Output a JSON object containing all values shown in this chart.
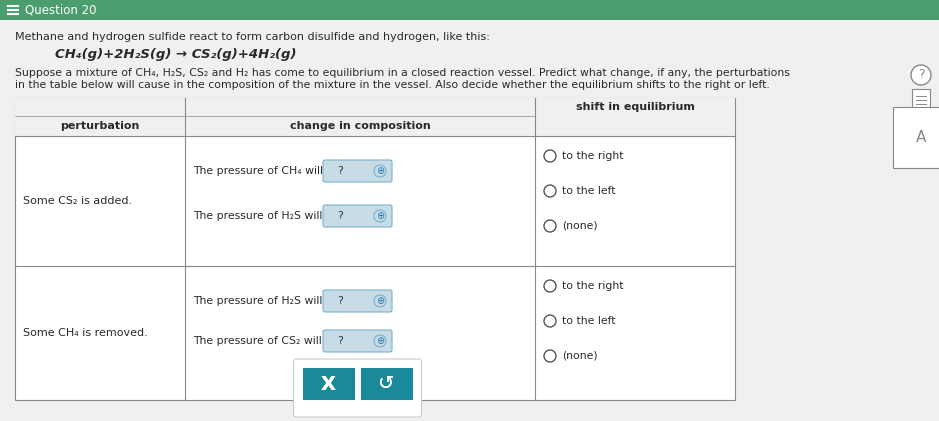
{
  "title": "Question 20",
  "title_bar_color": "#4a9e6e",
  "background_color": "#e8e8e8",
  "text_color": "#2a2a2a",
  "header_text": "Methane and hydrogen sulfide react to form carbon disulfide and hydrogen, like this:",
  "equation": "CH₄(g)+2H₂S(g) → CS₂(g)+4H₂(g)",
  "body_text1": "Suppose a mixture of CH₄, H₂S, CS₂ and H₂ has come to equilibrium in a closed reaction vessel. Predict what change, if any, the perturbations",
  "body_text2": "in the table below will cause in the composition of the mixture in the vessel. Also decide whether the equilibrium shifts to the right or left.",
  "table": {
    "col_headers": [
      "perturbation",
      "change in composition",
      "shift in equilibrium"
    ],
    "rows": [
      {
        "perturbation": "Some CS₂ is added.",
        "composition_items": [
          "The pressure of CH₄ will",
          "The pressure of H₂S will"
        ],
        "shift_options": [
          "to the right",
          "to the left",
          "(none)"
        ]
      },
      {
        "perturbation": "Some CH₄ is removed.",
        "composition_items": [
          "The pressure of H₂S will",
          "The pressure of CS₂ will"
        ],
        "shift_options": [
          "to the right",
          "to the left",
          "(none)"
        ]
      }
    ]
  },
  "button_color": "#1a8a9a",
  "button_x_text": "X",
  "button_redo_color": "#1a8a9a",
  "dropdown_color": "#c8dce8",
  "dropdown_border_color": "#7ab0c8",
  "radio_color": "#555555",
  "table_header_bg": "#f0f0f0",
  "table_border_color": "#888888",
  "table_bg": "#ffffff",
  "side_q_color": "#888888",
  "side_icon_color": "#888888"
}
